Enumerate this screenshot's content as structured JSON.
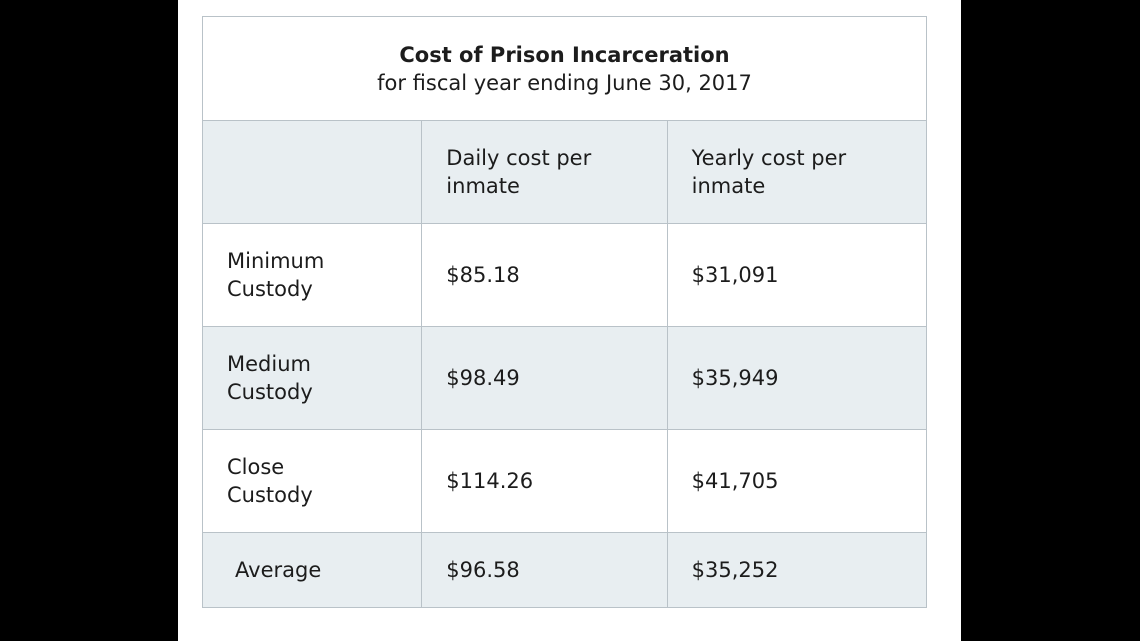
{
  "table": {
    "title": "Cost of Prison Incarceration",
    "subtitle": "for fiscal year ending June 30, 2017",
    "columns": [
      "",
      "Daily cost per inmate",
      "Yearly cost per inmate"
    ],
    "rows": [
      {
        "label": "Minimum Custody",
        "daily": "$85.18",
        "yearly": "$31,091"
      },
      {
        "label": "Medium Custody",
        "daily": "$98.49",
        "yearly": "$35,949"
      },
      {
        "label": "Close Custody",
        "daily": "$114.26",
        "yearly": "$41,705"
      },
      {
        "label": "Average",
        "daily": "$96.58",
        "yearly": "$35,252"
      }
    ]
  },
  "colors": {
    "background": "#000000",
    "page": "#ffffff",
    "shaded_row": "#e8eef1",
    "border": "#b9c2c8",
    "text": "#1c1c1c"
  }
}
